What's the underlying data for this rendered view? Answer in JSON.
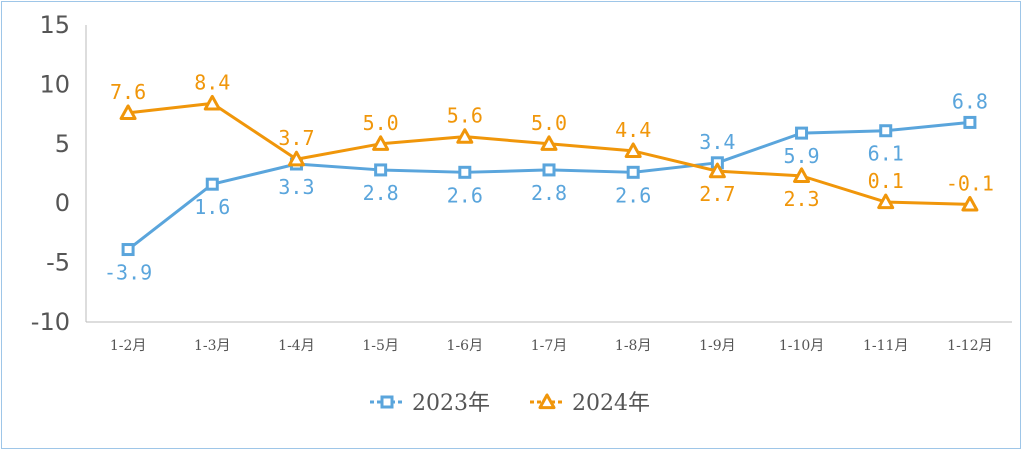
{
  "chart_data": {
    "type": "line",
    "categories": [
      "1-2月",
      "1-3月",
      "1-4月",
      "1-5月",
      "1-6月",
      "1-7月",
      "1-8月",
      "1-9月",
      "1-10月",
      "1-11月",
      "1-12月"
    ],
    "ylim": [
      -10,
      15
    ],
    "yticks": [
      -10,
      -5,
      0,
      5,
      10,
      15
    ],
    "ytick_labels": [
      "-10",
      "-5",
      "0",
      "5",
      "10",
      "15"
    ],
    "grid": false,
    "legend_position": "bottom",
    "series": [
      {
        "name": "2023年",
        "color": "#5aa5dc",
        "marker": "square",
        "values": [
          -3.9,
          1.6,
          3.3,
          2.8,
          2.6,
          2.8,
          2.6,
          3.4,
          5.9,
          6.1,
          6.8
        ],
        "labels": [
          "-3.9",
          "1.6",
          "3.3",
          "2.8",
          "2.6",
          "2.8",
          "2.6",
          "3.4",
          "5.9",
          "6.1",
          "6.8"
        ],
        "label_side": [
          "below",
          "below",
          "below",
          "below",
          "below",
          "below",
          "below",
          "above",
          "below",
          "below",
          "above"
        ]
      },
      {
        "name": "2024年",
        "color": "#f0960a",
        "marker": "triangle",
        "values": [
          7.6,
          8.4,
          3.7,
          5.0,
          5.6,
          5.0,
          4.4,
          2.7,
          2.3,
          0.1,
          -0.1
        ],
        "labels": [
          "7.6",
          "8.4",
          "3.7",
          "5.0",
          "5.6",
          "5.0",
          "4.4",
          "2.7",
          "2.3",
          "0.1",
          "-0.1"
        ],
        "label_side": [
          "above",
          "above",
          "above",
          "above",
          "above",
          "above",
          "above",
          "below",
          "below",
          "above",
          "above"
        ]
      }
    ]
  }
}
